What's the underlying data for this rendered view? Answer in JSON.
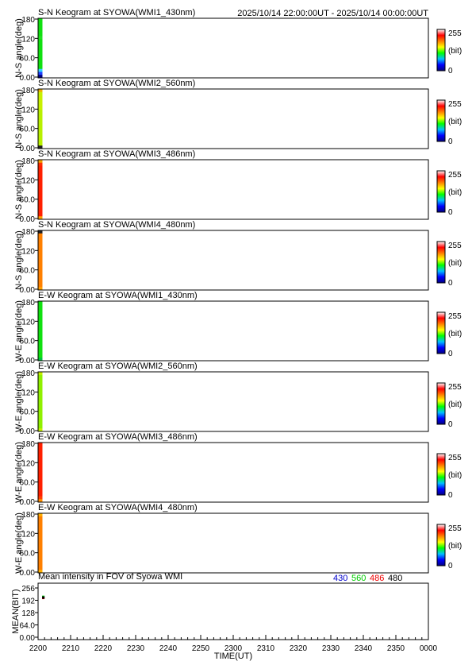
{
  "header": {
    "time_range": "2025/10/14 22:00:00UT - 2025/10/14 00:00:00UT"
  },
  "colorbar": {
    "max_label": "255",
    "unit_label": "(bit)",
    "min_label": "0",
    "stops": [
      "#000080",
      "#0000ff",
      "#00c0ff",
      "#00ff00",
      "#ffff00",
      "#ff8000",
      "#ff0000",
      "#ffffff"
    ]
  },
  "keogram_axis": {
    "y_tick_labels": [
      "180",
      "120",
      "60.0",
      "0.00"
    ],
    "y_ticks": [
      180,
      120,
      60,
      0
    ],
    "ylim": [
      0,
      180
    ]
  },
  "x_axis": {
    "label": "TIME(UT)",
    "tick_labels": [
      "2200",
      "2210",
      "2220",
      "2230",
      "2240",
      "2250",
      "2300",
      "2310",
      "2320",
      "2330",
      "2340",
      "2350",
      "0000"
    ]
  },
  "chart_data": [
    {
      "type": "heatmap",
      "title": "S-N Keogram at SYOWA(WMI1_430nm)",
      "ylabel": "N-S angle(deg)",
      "ylim": [
        0,
        180
      ],
      "data_coverage": "only the first minutes after 2200 UT contain data",
      "strip_colors": [
        "#10e010",
        "#10e010",
        "#10e010",
        "#10e010",
        "#10e010",
        "#10e010",
        "#20e020",
        "#10e010",
        "#10e010",
        "#10e010",
        "#10e010",
        "#10e010",
        "#10e010",
        "#10e010",
        "#10e010",
        "#10e010",
        "#10e010",
        "#30d0ff",
        "#2040ff",
        "#000080"
      ]
    },
    {
      "type": "heatmap",
      "title": "S-N Keogram at SYOWA(WMI2_560nm)",
      "ylabel": "N-S angle(deg)",
      "ylim": [
        0,
        180
      ],
      "data_coverage": "only the first minutes after 2200 UT contain data",
      "strip_colors": [
        "#f0b000",
        "#c8f000",
        "#c8f000",
        "#c8f000",
        "#c8f000",
        "#c8f000",
        "#c8f000",
        "#b8f000",
        "#b8f000",
        "#b8f000",
        "#b8f000",
        "#b8f000",
        "#b8f000",
        "#b8f000",
        "#b8f000",
        "#b8f000",
        "#b8f000",
        "#b8f000",
        "#b8f000",
        "#202020"
      ]
    },
    {
      "type": "heatmap",
      "title": "S-N Keogram at SYOWA(WMI3_486nm)",
      "ylabel": "N-S angle(deg)",
      "ylim": [
        0,
        180
      ],
      "data_coverage": "only the first minutes after 2200 UT contain data",
      "strip_colors": [
        "#f0a000",
        "#ff3000",
        "#ff2000",
        "#ff2000",
        "#ff2000",
        "#ff2000",
        "#ff2000",
        "#ff2000",
        "#ff2000",
        "#ff2000",
        "#ff2000",
        "#ff2000",
        "#ff2000",
        "#ff2000",
        "#ff2000",
        "#ff2000",
        "#ff2000",
        "#ff2000",
        "#ff2000",
        "#ffa000"
      ]
    },
    {
      "type": "heatmap",
      "title": "S-N Keogram at SYOWA(WMI4_480nm)",
      "ylabel": "N-S angle(deg)",
      "ylim": [
        0,
        180
      ],
      "data_coverage": "only the first minutes after 2200 UT contain data",
      "strip_colors": [
        "#202020",
        "#ff8000",
        "#ff8000",
        "#ff8000",
        "#ff8000",
        "#ff8000",
        "#ff8000",
        "#ff8000",
        "#ff8000",
        "#ff8000",
        "#ff8000",
        "#ff8000",
        "#ff8000",
        "#ff8000",
        "#ff8000",
        "#ff8000",
        "#ff8000",
        "#ff8000",
        "#ff8000",
        "#ffa000"
      ]
    },
    {
      "type": "heatmap",
      "title": "E-W Keogram at SYOWA(WMI1_430nm)",
      "ylabel": "W-E angle(deg)",
      "ylim": [
        0,
        180
      ],
      "data_coverage": "only the first minutes after 2200 UT contain data",
      "strip_colors": [
        "#10e010",
        "#10e010",
        "#10e010",
        "#10e010",
        "#10e010",
        "#10e010",
        "#10e010",
        "#10e010",
        "#10e010",
        "#10e010",
        "#10e010",
        "#10e010",
        "#10e010",
        "#10e010",
        "#10e010",
        "#10e010",
        "#10e010",
        "#10e010",
        "#10e010",
        "#00c040"
      ]
    },
    {
      "type": "heatmap",
      "title": "E-W Keogram at SYOWA(WMI2_560nm)",
      "ylabel": "W-E angle(deg)",
      "ylim": [
        0,
        180
      ],
      "data_coverage": "only the first minutes after 2200 UT contain data",
      "strip_colors": [
        "#c8f000",
        "#90f000",
        "#90f000",
        "#90f000",
        "#90f000",
        "#90f000",
        "#90f000",
        "#90f000",
        "#90f000",
        "#90f000",
        "#90f000",
        "#90f000",
        "#90f000",
        "#90f000",
        "#90f000",
        "#90f000",
        "#90f000",
        "#90f000",
        "#90f000",
        "#c8f000"
      ]
    },
    {
      "type": "heatmap",
      "title": "E-W Keogram at SYOWA(WMI3_486nm)",
      "ylabel": "W-E angle(deg)",
      "ylim": [
        0,
        180
      ],
      "data_coverage": "only the first minutes after 2200 UT contain data",
      "strip_colors": [
        "#ff2000",
        "#ff2000",
        "#ff2000",
        "#ff2000",
        "#ff2000",
        "#ff2000",
        "#ff2000",
        "#ff2000",
        "#ff2000",
        "#ff2000",
        "#ff2000",
        "#ff2000",
        "#ff2000",
        "#ff2000",
        "#ff2000",
        "#ff2000",
        "#ff2000",
        "#ff2000",
        "#ff4000",
        "#ff9000"
      ]
    },
    {
      "type": "heatmap",
      "title": "E-W Keogram at SYOWA(WMI4_480nm)",
      "ylabel": "W-E angle(deg)",
      "ylim": [
        0,
        180
      ],
      "data_coverage": "only the first minutes after 2200 UT contain data",
      "strip_colors": [
        "#ffb000",
        "#ff8000",
        "#ff8000",
        "#ff8000",
        "#ff8000",
        "#ff8000",
        "#ff8000",
        "#ff8000",
        "#ff8000",
        "#ff8000",
        "#ff8000",
        "#ff8000",
        "#ff8000",
        "#ff8000",
        "#ff8000",
        "#ff8000",
        "#ff8000",
        "#ff8000",
        "#ff8000",
        "#ffb000"
      ]
    },
    {
      "type": "line",
      "title": "Mean intensity in FOV of Syowa WMI",
      "ylabel": "MEAN(BIT)",
      "xlabel": "TIME(UT)",
      "ylim": [
        0,
        256
      ],
      "y_tick_labels": [
        "256",
        "192",
        "128",
        "64.0",
        "0.00"
      ],
      "y_ticks": [
        256,
        192,
        128,
        64,
        0
      ],
      "series": [
        {
          "name": "430",
          "color": "#0000cc",
          "values": [
            {
              "time": "2201",
              "mean": 208
            }
          ]
        },
        {
          "name": "560",
          "color": "#00cc00",
          "values": [
            {
              "time": "2201",
              "mean": 210
            }
          ]
        },
        {
          "name": "486",
          "color": "#ee0000",
          "values": [
            {
              "time": "2201",
              "mean": 204
            }
          ]
        },
        {
          "name": "480",
          "color": "#000000",
          "values": [
            {
              "time": "2201",
              "mean": 206
            }
          ]
        }
      ]
    }
  ]
}
